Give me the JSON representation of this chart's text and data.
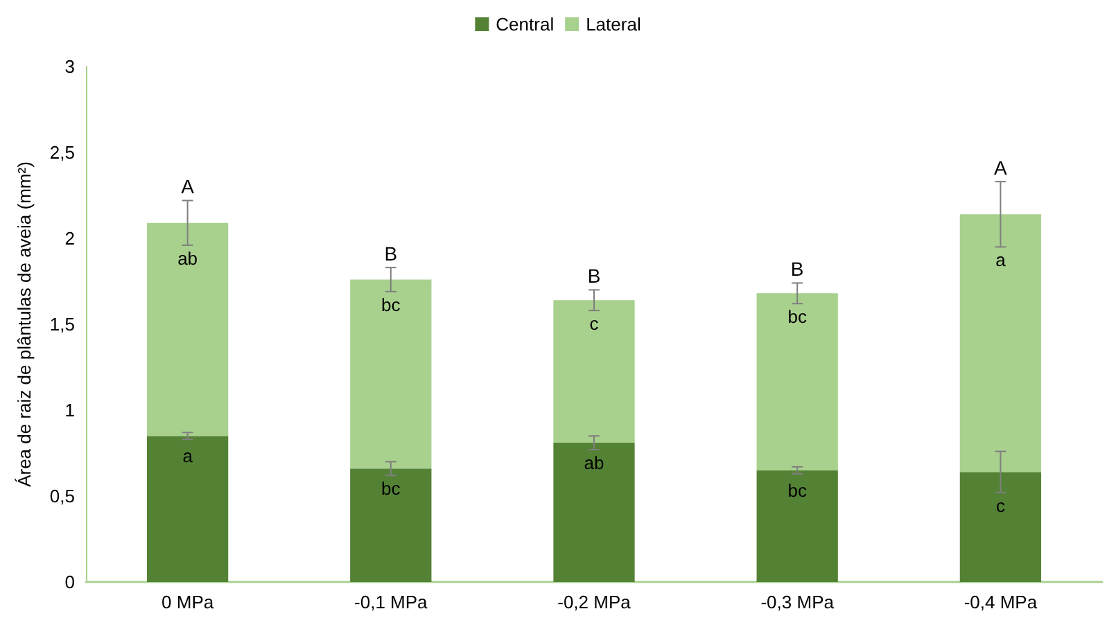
{
  "chart_data": {
    "type": "bar",
    "stacked": true,
    "ylabel": "Área de raiz de plântulas de aveia (mm²)",
    "categories": [
      "0 MPa",
      "-0,1 MPa",
      "-0,2 MPa",
      "-0,3 MPa",
      "-0,4 MPa"
    ],
    "series": [
      {
        "name": "Central",
        "color": "#548235",
        "values": [
          0.85,
          0.66,
          0.81,
          0.65,
          0.64
        ],
        "errors": [
          0.02,
          0.04,
          0.04,
          0.02,
          0.12
        ],
        "value_labels": [
          "a",
          "bc",
          "ab",
          "bc",
          "c"
        ]
      },
      {
        "name": "Lateral",
        "color": "#a9d18e",
        "values": [
          1.24,
          1.1,
          0.83,
          1.03,
          1.5
        ],
        "errors": [
          0.13,
          0.07,
          0.06,
          0.06,
          0.19
        ],
        "value_labels": [
          "ab",
          "bc",
          "c",
          "bc",
          "a"
        ]
      }
    ],
    "annotations": [
      {
        "text": "A",
        "x": "0 MPa",
        "y": 2.22
      },
      {
        "text": "B",
        "x": "-0,1 MPa",
        "y": 1.83
      },
      {
        "text": "B",
        "x": "-0,2 MPa",
        "y": 1.7
      },
      {
        "text": "B",
        "x": "-0,3 MPa",
        "y": 1.74
      },
      {
        "text": "A",
        "x": "-0,4 MPa",
        "y": 2.33
      }
    ],
    "ylim": [
      0,
      3
    ],
    "yticks": [
      0,
      {
        "value": 0.5,
        "label": "0,5"
      },
      1,
      {
        "value": 1.5,
        "label": "1,5"
      },
      2,
      {
        "value": 2.5,
        "label": "2,5"
      },
      3
    ],
    "grid": false,
    "legend": "top"
  }
}
